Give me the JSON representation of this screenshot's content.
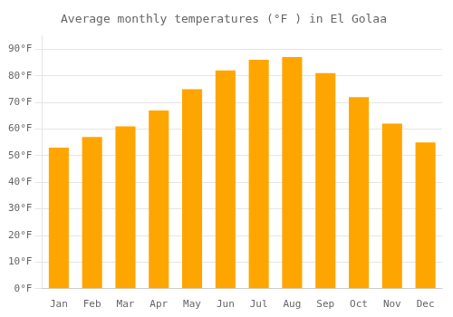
{
  "chart_data": {
    "type": "bar",
    "title": "Average monthly temperatures (°F ) in El Golaa",
    "categories": [
      "Jan",
      "Feb",
      "Mar",
      "Apr",
      "May",
      "Jun",
      "Jul",
      "Aug",
      "Sep",
      "Oct",
      "Nov",
      "Dec"
    ],
    "values": [
      53,
      57,
      61,
      67,
      75,
      82,
      86,
      87,
      81,
      72,
      62,
      55
    ],
    "color": "#FFA500",
    "ylim": [
      0,
      95
    ],
    "yticks": [
      {
        "value": 0,
        "label": "0°F"
      },
      {
        "value": 10,
        "label": "10°F"
      },
      {
        "value": 20,
        "label": "20°F"
      },
      {
        "value": 30,
        "label": "30°F"
      },
      {
        "value": 40,
        "label": "40°F"
      },
      {
        "value": 50,
        "label": "50°F"
      },
      {
        "value": 60,
        "label": "60°F"
      },
      {
        "value": 70,
        "label": "70°F"
      },
      {
        "value": 80,
        "label": "80°F"
      },
      {
        "value": 90,
        "label": "90°F"
      }
    ],
    "grid": true
  }
}
